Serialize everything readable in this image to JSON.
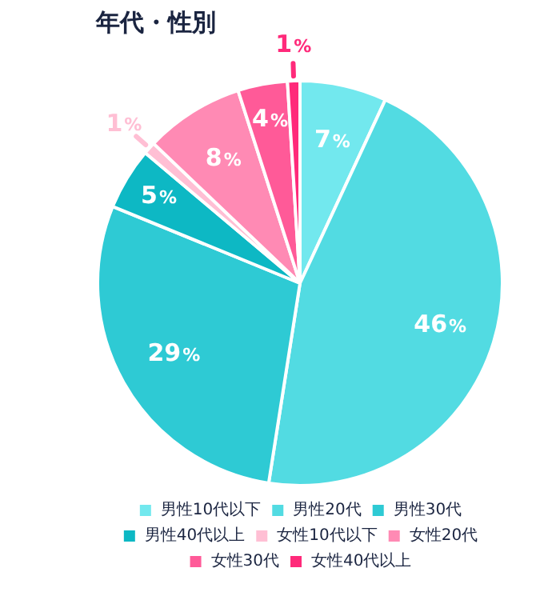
{
  "chart_data": {
    "type": "pie",
    "title": "年代・性別",
    "categories": [
      "男性10代以下",
      "男性20代",
      "男性30代",
      "男性40代以上",
      "女性10代以下",
      "女性20代",
      "女性30代",
      "女性40代以上"
    ],
    "values": [
      7,
      46,
      29,
      5,
      1,
      8,
      4,
      1
    ],
    "colors": [
      "#72e8ee",
      "#52dbe2",
      "#2ecad4",
      "#0db8c4",
      "#ffbfd4",
      "#ff8ab4",
      "#ff5a98",
      "#ff2a7a"
    ],
    "value_labels": [
      "7%",
      "46%",
      "29%",
      "5%",
      "1%",
      "8%",
      "4%",
      "1%"
    ],
    "legend": "bottom"
  }
}
